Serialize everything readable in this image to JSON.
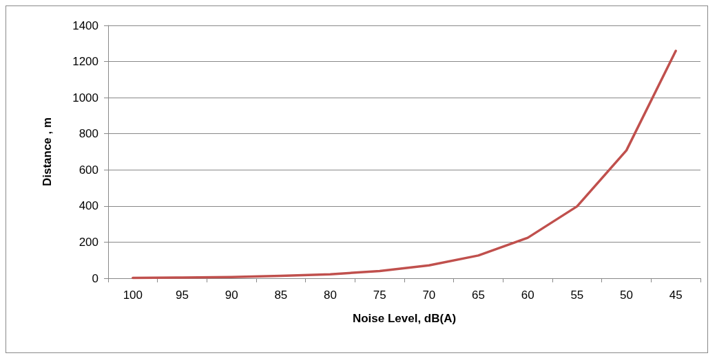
{
  "chart_data": {
    "type": "line",
    "xlabel": "Noise Level, dB(A)",
    "ylabel": "Distance , m",
    "categories": [
      "100",
      "95",
      "90",
      "85",
      "80",
      "75",
      "70",
      "65",
      "60",
      "55",
      "50",
      "45"
    ],
    "series": [
      {
        "color": "#c0504d",
        "values": [
          2,
          4,
          7,
          13,
          22,
          40,
          71,
          126,
          224,
          398,
          708,
          1259
        ]
      }
    ],
    "ylim": [
      0,
      1400
    ],
    "yticks": [
      0,
      200,
      400,
      600,
      800,
      1000,
      1200,
      1400
    ],
    "grid": "y",
    "marker": "none",
    "line_style": "solid"
  }
}
